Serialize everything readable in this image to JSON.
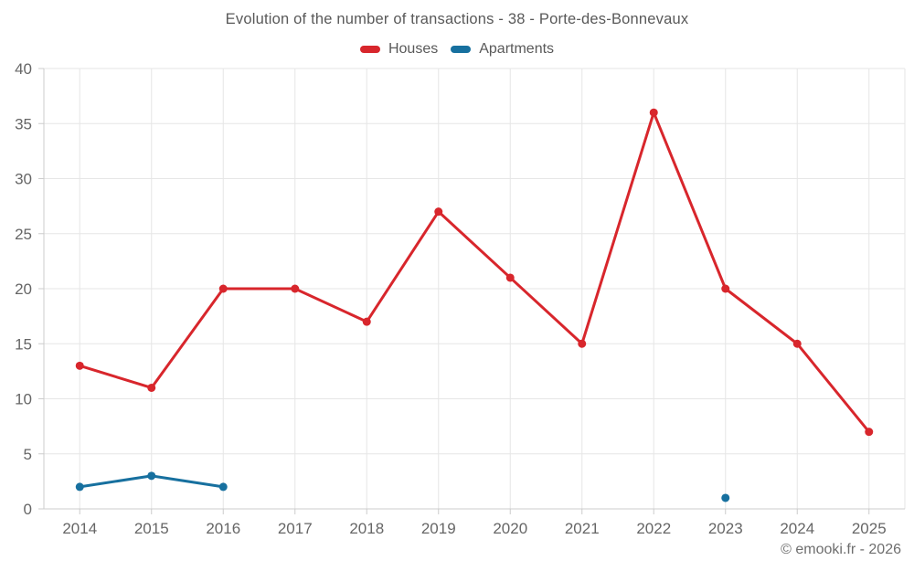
{
  "chart_data": {
    "type": "line",
    "title": "Evolution of the number of transactions - 38 - Porte-des-Bonnevaux",
    "categories": [
      "2014",
      "2015",
      "2016",
      "2017",
      "2018",
      "2019",
      "2020",
      "2021",
      "2022",
      "2023",
      "2024",
      "2025"
    ],
    "series": [
      {
        "name": "Houses",
        "color": "#d8262c",
        "values": [
          13,
          11,
          20,
          20,
          17,
          27,
          21,
          15,
          36,
          20,
          15,
          7
        ]
      },
      {
        "name": "Apartments",
        "color": "#17709f",
        "values": [
          2,
          3,
          2,
          null,
          null,
          null,
          null,
          null,
          null,
          1,
          null,
          null
        ]
      }
    ],
    "ylim": [
      0,
      40
    ],
    "ytick_step": 5,
    "grid": true,
    "legend_position": "top",
    "footer": "© emooki.fr - 2026"
  }
}
